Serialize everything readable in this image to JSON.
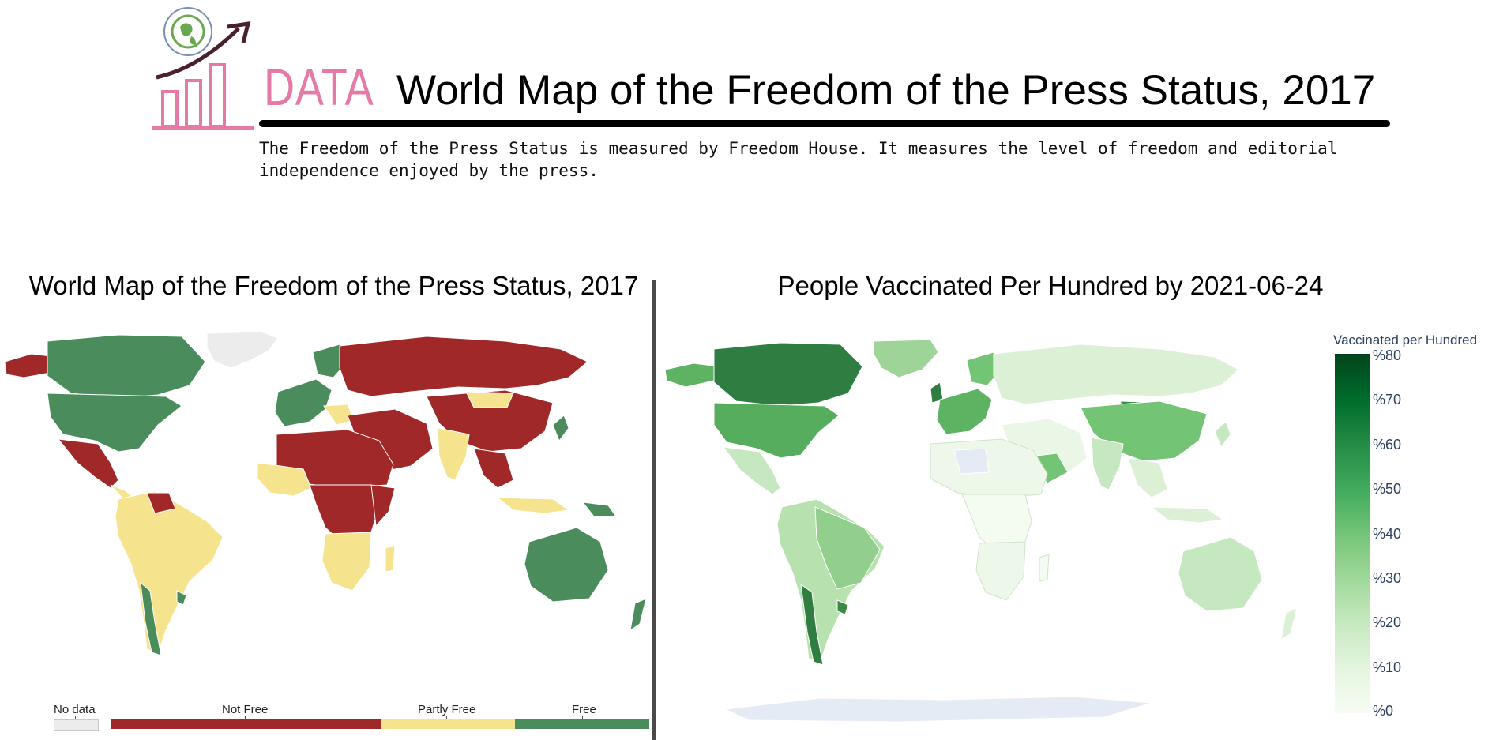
{
  "header": {
    "logo_word": "DATA",
    "title": "World Map of the Freedom of the Press Status, 2017",
    "description": "The Freedom of the Press Status is measured by Freedom House. It measures the level of freedom and editorial independence enjoyed by the press."
  },
  "left_panel": {
    "title": "World Map of the Freedom of the Press Status, 2017",
    "legend": [
      {
        "label": "No data",
        "color": "#ececec"
      },
      {
        "label": "Not Free",
        "color": "#a02828"
      },
      {
        "label": "Partly Free",
        "color": "#f5e38e"
      },
      {
        "label": "Free",
        "color": "#4a8c5c"
      }
    ]
  },
  "right_panel": {
    "title": "People Vaccinated Per Hundred by 2021-06-24",
    "colorbar": {
      "title": "Vaccinated per Hundred",
      "ticks": [
        "%80",
        "%70",
        "%60",
        "%50",
        "%40",
        "%30",
        "%20",
        "%10",
        "%0"
      ]
    }
  },
  "colors": {
    "not_free": "#a02828",
    "partly_free": "#f5e38e",
    "free": "#4a8c5c",
    "no_data": "#ececec",
    "logo_pink": "#e57aa6",
    "logo_green": "#6aa84f",
    "logo_dark": "#4a1f2e"
  }
}
